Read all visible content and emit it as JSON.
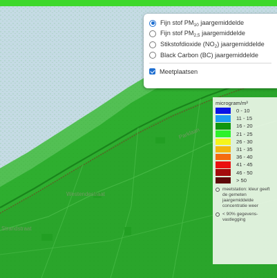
{
  "top_bar": {
    "color": "#3dd82c"
  },
  "map": {
    "street_labels": {
      "westend": "Westendestraat",
      "left": "Strandstraat",
      "upper": "Parklaan"
    }
  },
  "layer_control": {
    "layers": [
      {
        "text": "Fijn stof PM",
        "sub": "10",
        "suffix": " jaargemiddelde",
        "checked": true
      },
      {
        "text": "Fijn stof PM",
        "sub": "2,5",
        "suffix": " jaargemiddelde",
        "checked": false
      },
      {
        "text": "Stikstofdioxide (NO",
        "sub": "2",
        "suffix": ") jaargemiddelde",
        "checked": false
      },
      {
        "text": "Black Carbon (BC) jaargemiddelde",
        "sub": "",
        "suffix": "",
        "checked": false
      }
    ],
    "overlay": {
      "label": "Meetplaatsen",
      "checked": true
    }
  },
  "legend": {
    "title": "microgram/m³",
    "classes": [
      {
        "label": "0 - 10",
        "color": "#0a14e6"
      },
      {
        "label": "11 - 15",
        "color": "#1e9ef2"
      },
      {
        "label": "16 - 20",
        "color": "#10960f"
      },
      {
        "label": "21 - 25",
        "color": "#2ef22b"
      },
      {
        "label": "26 - 30",
        "color": "#f5f51b"
      },
      {
        "label": "31 - 35",
        "color": "#f5b40f"
      },
      {
        "label": "36 - 40",
        "color": "#f56b0f"
      },
      {
        "label": "41 - 45",
        "color": "#eb1010"
      },
      {
        "label": "46 - 50",
        "color": "#a40c0c"
      },
      {
        "label": "> 50",
        "color": "#5e0a0a"
      }
    ],
    "notes": [
      "meetstation: kleur geeft de gemeten jaargemiddelde concentratie weer",
      "< 90% gegevens-vastlegging"
    ]
  }
}
